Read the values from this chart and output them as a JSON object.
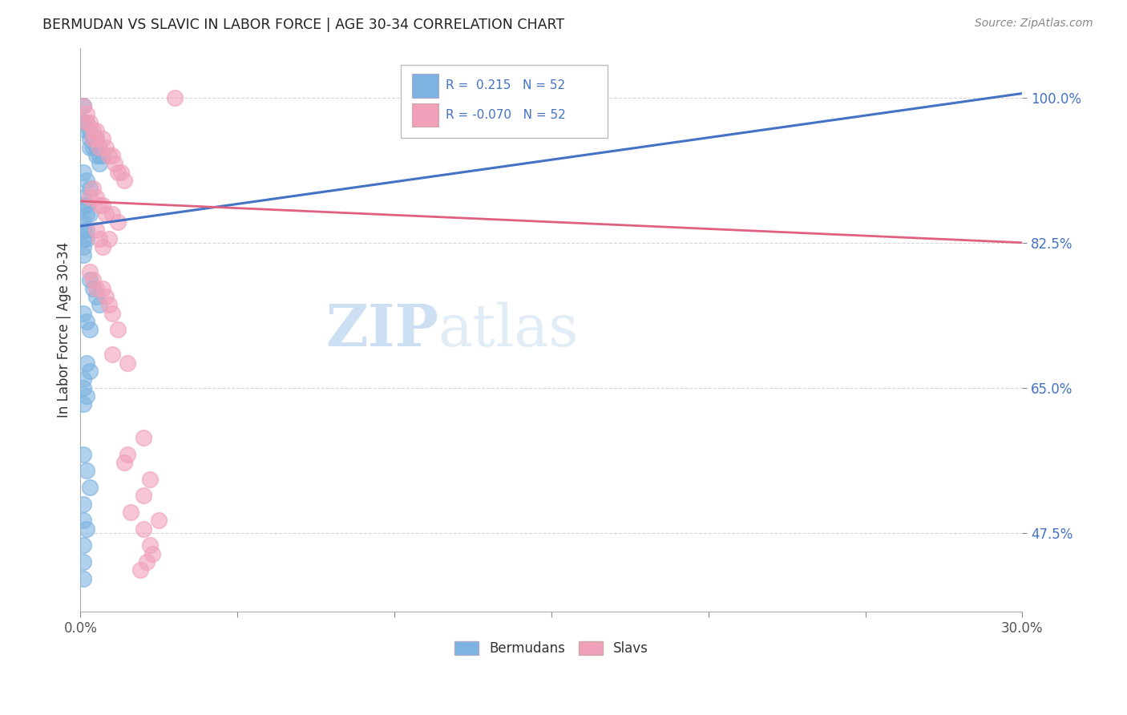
{
  "title": "BERMUDAN VS SLAVIC IN LABOR FORCE | AGE 30-34 CORRELATION CHART",
  "source": "Source: ZipAtlas.com",
  "ylabel": "In Labor Force | Age 30-34",
  "xlim": [
    0.0,
    0.3
  ],
  "ylim": [
    0.38,
    1.06
  ],
  "xtick_positions": [
    0.0,
    0.3
  ],
  "xticklabels": [
    "0.0%",
    "30.0%"
  ],
  "yticks": [
    0.475,
    0.65,
    0.825,
    1.0
  ],
  "yticklabels": [
    "47.5%",
    "65.0%",
    "82.5%",
    "100.0%"
  ],
  "blue_R": 0.215,
  "blue_N": 52,
  "pink_R_str": "-0.070",
  "pink_N": 52,
  "blue_color": "#7db3e0",
  "pink_color": "#f0a0b8",
  "trend_blue_color": "#4472c4",
  "trend_pink_color": "#e06080",
  "tick_color": "#4472c4",
  "legend_label_blue": "Bermudans",
  "legend_label_pink": "Slavs",
  "watermark_zip": "ZIP",
  "watermark_atlas": "atlas",
  "blue_trend_x0": 0.0,
  "blue_trend_y0": 0.845,
  "blue_trend_x1": 0.3,
  "blue_trend_y1": 1.005,
  "pink_trend_x0": 0.0,
  "pink_trend_y0": 0.875,
  "pink_trend_x1": 0.3,
  "pink_trend_y1": 0.825,
  "blue_x": [
    0.001,
    0.001,
    0.002,
    0.002,
    0.003,
    0.003,
    0.003,
    0.004,
    0.004,
    0.005,
    0.005,
    0.005,
    0.006,
    0.006,
    0.007,
    0.001,
    0.002,
    0.003,
    0.001,
    0.001,
    0.002,
    0.002,
    0.003,
    0.001,
    0.001,
    0.002,
    0.001,
    0.002,
    0.001,
    0.001,
    0.003,
    0.004,
    0.005,
    0.006,
    0.001,
    0.002,
    0.003,
    0.002,
    0.003,
    0.001,
    0.001,
    0.002,
    0.001,
    0.001,
    0.002,
    0.003,
    0.001,
    0.001,
    0.002,
    0.001,
    0.001,
    0.001
  ],
  "blue_y": [
    0.99,
    0.97,
    0.97,
    0.96,
    0.96,
    0.95,
    0.94,
    0.95,
    0.94,
    0.93,
    0.94,
    0.95,
    0.93,
    0.92,
    0.93,
    0.91,
    0.9,
    0.89,
    0.88,
    0.87,
    0.87,
    0.86,
    0.86,
    0.85,
    0.84,
    0.84,
    0.83,
    0.83,
    0.82,
    0.81,
    0.78,
    0.77,
    0.76,
    0.75,
    0.74,
    0.73,
    0.72,
    0.68,
    0.67,
    0.66,
    0.65,
    0.64,
    0.63,
    0.57,
    0.55,
    0.53,
    0.51,
    0.49,
    0.48,
    0.46,
    0.44,
    0.42
  ],
  "pink_x": [
    0.001,
    0.002,
    0.002,
    0.003,
    0.004,
    0.004,
    0.005,
    0.005,
    0.006,
    0.007,
    0.008,
    0.009,
    0.01,
    0.011,
    0.012,
    0.013,
    0.014,
    0.003,
    0.004,
    0.005,
    0.006,
    0.007,
    0.008,
    0.01,
    0.012,
    0.005,
    0.006,
    0.007,
    0.009,
    0.003,
    0.004,
    0.005,
    0.007,
    0.008,
    0.009,
    0.01,
    0.012,
    0.015,
    0.01,
    0.02,
    0.015,
    0.014,
    0.022,
    0.02,
    0.016,
    0.025,
    0.02,
    0.022,
    0.023,
    0.021,
    0.019,
    0.03
  ],
  "pink_y": [
    0.99,
    0.98,
    0.97,
    0.97,
    0.96,
    0.95,
    0.96,
    0.95,
    0.94,
    0.95,
    0.94,
    0.93,
    0.93,
    0.92,
    0.91,
    0.91,
    0.9,
    0.88,
    0.89,
    0.88,
    0.87,
    0.87,
    0.86,
    0.86,
    0.85,
    0.84,
    0.83,
    0.82,
    0.83,
    0.79,
    0.78,
    0.77,
    0.77,
    0.76,
    0.75,
    0.74,
    0.72,
    0.68,
    0.69,
    0.59,
    0.57,
    0.56,
    0.54,
    0.52,
    0.5,
    0.49,
    0.48,
    0.46,
    0.45,
    0.44,
    0.43,
    1.0
  ]
}
